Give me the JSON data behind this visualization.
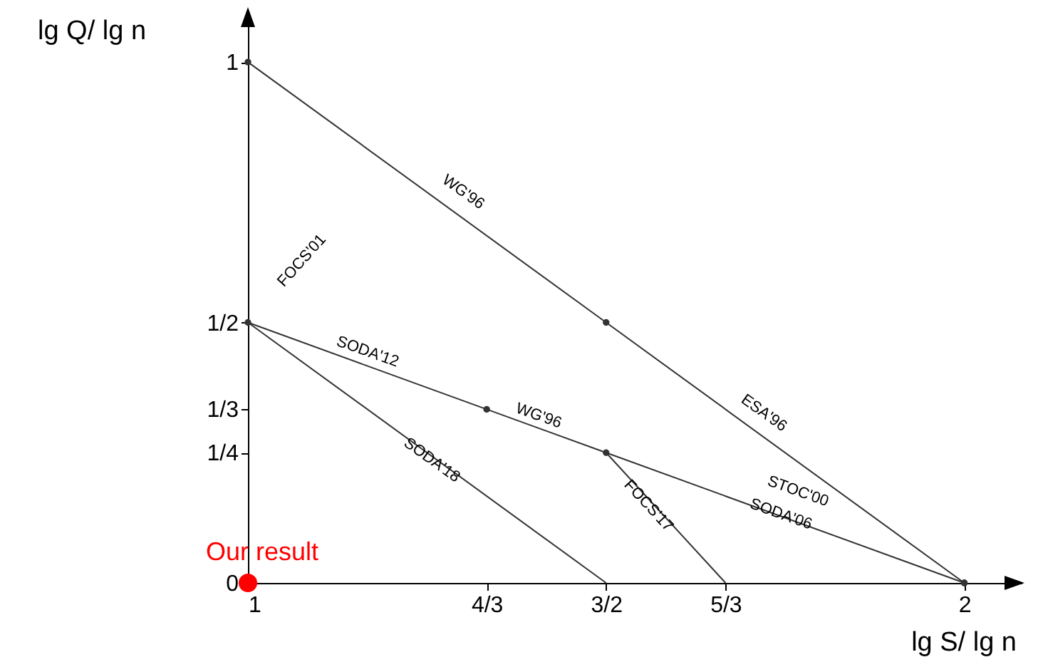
{
  "chart_data": {
    "type": "line",
    "xlabel": "lg S/ lg n",
    "ylabel": "lg Q/ lg n",
    "xlim": [
      1,
      2.08
    ],
    "ylim": [
      0,
      1.1
    ],
    "xticks": [
      1,
      {
        "value": 1.3333,
        "label": "4/3"
      },
      {
        "value": 1.5,
        "label": "3/2"
      },
      {
        "value": 1.6667,
        "label": "5/3"
      },
      2
    ],
    "yticks": [
      0,
      {
        "value": 0.25,
        "label": "1/4"
      },
      {
        "value": 0.3333,
        "label": "1/3"
      },
      {
        "value": 0.5,
        "label": "1/2"
      },
      1
    ],
    "series": [
      {
        "type": "line",
        "color": "#333333",
        "marker": "circle",
        "x": [
          1,
          1.5,
          2
        ],
        "values": [
          1,
          0.5,
          0
        ]
      },
      {
        "type": "line",
        "color": "#333333",
        "marker": "circle",
        "x": [
          1,
          1.3333,
          1.5,
          2
        ],
        "values": [
          0.5,
          0.3333,
          0.25,
          0
        ]
      },
      {
        "type": "line",
        "color": "#333333",
        "marker": "none",
        "x": [
          1,
          1.5
        ],
        "values": [
          0.5,
          0
        ]
      },
      {
        "type": "line",
        "color": "#333333",
        "marker": "none",
        "x": [
          1.5,
          1.6667
        ],
        "values": [
          0.25,
          0
        ]
      },
      {
        "type": "scatter",
        "name": "Our result",
        "color": "#ff0000",
        "marker": "circle",
        "x": [
          1
        ],
        "values": [
          0
        ]
      }
    ],
    "annotations": [
      "WG'96",
      "ESA'96",
      "FOCS'01",
      "SODA'12",
      "WG'96",
      "STOC'00",
      "SODA'06",
      "SODA'18",
      "FOCS'17"
    ]
  }
}
